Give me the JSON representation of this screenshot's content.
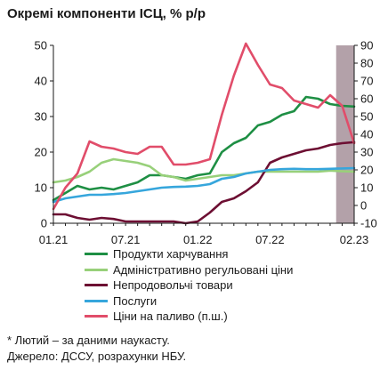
{
  "chart_data": {
    "type": "line",
    "title": "Окремі компоненти ІСЦ, % р/р",
    "x_ticks": [
      "01.21",
      "07.21",
      "01.22",
      "07.22",
      "02.23"
    ],
    "x_start": "2021-01",
    "x_end": "2023-02",
    "forecast_period": [
      "2023-01",
      "2023-02"
    ],
    "y_left": {
      "range": [
        0,
        50
      ],
      "ticks": [
        0,
        10,
        20,
        30,
        40,
        50
      ]
    },
    "y_right": {
      "range": [
        -10,
        90
      ],
      "ticks": [
        -10,
        0,
        10,
        20,
        30,
        40,
        50,
        60,
        70,
        80,
        90
      ]
    },
    "grid": false,
    "series": [
      {
        "name": "Продукти харчування",
        "axis": "left",
        "color": "#1e8f44",
        "values": [
          6.5,
          8.5,
          10.5,
          9.5,
          10,
          9.5,
          10.5,
          11.5,
          13.5,
          13.5,
          13,
          12.5,
          13.5,
          14,
          20,
          22.5,
          24,
          27.5,
          28.5,
          30.5,
          31.5,
          35.5,
          35,
          33.5,
          33,
          32.8
        ]
      },
      {
        "name": "Адміністративно регульовані ціни",
        "axis": "left",
        "color": "#98d07a",
        "values": [
          11.5,
          12,
          13,
          14.5,
          17,
          18,
          17.5,
          17,
          16,
          13.5,
          13,
          12,
          12.5,
          13,
          13.5,
          13.5,
          14,
          14.5,
          14.5,
          14.5,
          14.5,
          14.5,
          14.5,
          14.8,
          14.6,
          14.5
        ]
      },
      {
        "name": "Непродовольчі товари",
        "axis": "left",
        "color": "#6d0f33",
        "values": [
          2.5,
          2.5,
          1.5,
          1,
          1.5,
          1.2,
          0.5,
          0.5,
          0.5,
          0.5,
          0.5,
          0,
          0.5,
          3,
          6,
          7,
          9,
          11.5,
          17,
          18.5,
          19.5,
          20.5,
          21,
          22,
          22.5,
          22.8
        ]
      },
      {
        "name": "Послуги",
        "axis": "left",
        "color": "#36a6dc",
        "values": [
          6,
          7,
          7.5,
          8,
          8,
          8.2,
          8.5,
          9,
          9.5,
          10,
          10.2,
          10.3,
          10.5,
          11,
          12.5,
          13,
          14,
          14.5,
          15,
          15.2,
          15.3,
          15.2,
          15.2,
          15.3,
          15.4,
          15.5
        ]
      },
      {
        "name": "Ціни на паливо (п.ш.)",
        "axis": "right",
        "color": "#e14d6a",
        "values": [
          -2,
          10,
          18,
          36,
          33,
          32,
          30,
          29,
          33,
          33,
          23,
          23,
          24,
          26,
          51,
          73,
          91,
          79,
          68,
          66,
          59,
          57,
          55,
          62,
          56,
          35
        ]
      }
    ]
  },
  "notes": {
    "line1": "* Лютий – за даними наукасту.",
    "line2": "Джерело: ДССУ, розрахунки НБУ."
  }
}
